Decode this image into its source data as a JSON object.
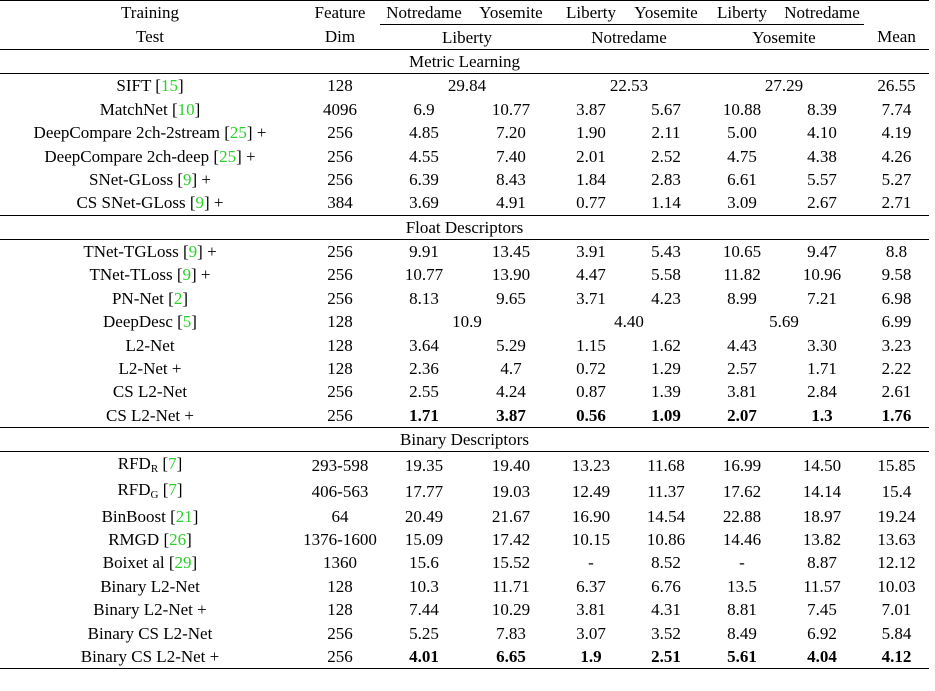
{
  "header": {
    "row1": {
      "method": "Training",
      "feat": "Feature",
      "train": [
        "Notredame",
        "Yosemite",
        "Liberty",
        "Yosemite",
        "Liberty",
        "Notredame"
      ]
    },
    "row2": {
      "method": "Test",
      "feat": "Dim",
      "test": [
        "Liberty",
        "Notredame",
        "Yosemite"
      ],
      "mean": "Mean"
    }
  },
  "sections": [
    {
      "title": "Metric Learning",
      "rows": [
        {
          "name": "SIFT",
          "cite": "15",
          "plus": "",
          "dim": "128",
          "merged": [
            "29.84",
            "22.53",
            "27.29"
          ],
          "mean": "26.55"
        },
        {
          "name": "MatchNet",
          "cite": "10",
          "plus": "",
          "dim": "4096",
          "values": [
            "6.9",
            "10.77",
            "3.87",
            "5.67",
            "10.88",
            "8.39"
          ],
          "mean": "7.74"
        },
        {
          "name": "DeepCompare 2ch-2stream",
          "cite": "25",
          "plus": " +",
          "dim": "256",
          "values": [
            "4.85",
            "7.20",
            "1.90",
            "2.11",
            "5.00",
            "4.10"
          ],
          "mean": "4.19"
        },
        {
          "name": "DeepCompare 2ch-deep",
          "cite": "25",
          "plus": " +",
          "dim": "256",
          "values": [
            "4.55",
            "7.40",
            "2.01",
            "2.52",
            "4.75",
            "4.38"
          ],
          "mean": "4.26"
        },
        {
          "name": "SNet-GLoss",
          "cite": "9",
          "plus": " +",
          "dim": "256",
          "values": [
            "6.39",
            "8.43",
            "1.84",
            "2.83",
            "6.61",
            "5.57"
          ],
          "mean": "5.27"
        },
        {
          "name": "CS SNet-GLoss",
          "cite": "9",
          "plus": " +",
          "dim": "384",
          "values": [
            "3.69",
            "4.91",
            "0.77",
            "1.14",
            "3.09",
            "2.67"
          ],
          "mean": "2.71"
        }
      ]
    },
    {
      "title": "Float Descriptors",
      "rows": [
        {
          "name": "TNet-TGLoss",
          "cite": "9",
          "plus": " +",
          "dim": "256",
          "values": [
            "9.91",
            "13.45",
            "3.91",
            "5.43",
            "10.65",
            "9.47"
          ],
          "mean": "8.8"
        },
        {
          "name": "TNet-TLoss",
          "cite": "9",
          "plus": " +",
          "dim": "256",
          "values": [
            "10.77",
            "13.90",
            "4.47",
            "5.58",
            "11.82",
            "10.96"
          ],
          "mean": "9.58"
        },
        {
          "name": "PN-Net",
          "cite": "2",
          "plus": "",
          "dim": "256",
          "values": [
            "8.13",
            "9.65",
            "3.71",
            "4.23",
            "8.99",
            "7.21"
          ],
          "mean": "6.98"
        },
        {
          "name": "DeepDesc",
          "cite": "5",
          "plus": "",
          "dim": "128",
          "merged": [
            "10.9",
            "4.40",
            "5.69"
          ],
          "mean": "6.99"
        },
        {
          "name": "L2-Net",
          "cite": "",
          "plus": "",
          "dim": "128",
          "values": [
            "3.64",
            "5.29",
            "1.15",
            "1.62",
            "4.43",
            "3.30"
          ],
          "mean": "3.23"
        },
        {
          "name": "L2-Net +",
          "cite": "",
          "plus": "",
          "dim": "128",
          "values": [
            "2.36",
            "4.7",
            "0.72",
            "1.29",
            "2.57",
            "1.71"
          ],
          "mean": "2.22"
        },
        {
          "name": "CS L2-Net",
          "cite": "",
          "plus": "",
          "dim": "256",
          "values": [
            "2.55",
            "4.24",
            "0.87",
            "1.39",
            "3.81",
            "2.84"
          ],
          "mean": "2.61"
        },
        {
          "name": "CS L2-Net +",
          "cite": "",
          "plus": "",
          "dim": "256",
          "values": [
            "1.71",
            "3.87",
            "0.56",
            "1.09",
            "2.07",
            "1.3"
          ],
          "mean": "1.76",
          "bold": true
        }
      ]
    },
    {
      "title": "Binary Descriptors",
      "rows": [
        {
          "name": "RFD",
          "sub": "R",
          "cite": "7",
          "plus": "",
          "dim": "293-598",
          "values": [
            "19.35",
            "19.40",
            "13.23",
            "11.68",
            "16.99",
            "14.50"
          ],
          "mean": "15.85"
        },
        {
          "name": "RFD",
          "sub": "G",
          "cite": "7",
          "plus": "",
          "dim": "406-563",
          "values": [
            "17.77",
            "19.03",
            "12.49",
            "11.37",
            "17.62",
            "14.14"
          ],
          "mean": "15.4"
        },
        {
          "name": "BinBoost",
          "cite": "21",
          "plus": "",
          "dim": "64",
          "values": [
            "20.49",
            "21.67",
            "16.90",
            "14.54",
            "22.88",
            "18.97"
          ],
          "mean": "19.24"
        },
        {
          "name": "RMGD",
          "cite": "26",
          "plus": "",
          "dim": "1376-1600",
          "values": [
            "15.09",
            "17.42",
            "10.15",
            "10.86",
            "14.46",
            "13.82"
          ],
          "mean": "13.63"
        },
        {
          "name": "Boixet al",
          "cite": "29",
          "plus": "",
          "dim": "1360",
          "values": [
            "15.6",
            "15.52",
            "-",
            "8.52",
            "-",
            "8.87"
          ],
          "mean": "12.12"
        },
        {
          "name": "Binary L2-Net",
          "cite": "",
          "plus": "",
          "dim": "128",
          "values": [
            "10.3",
            "11.71",
            "6.37",
            "6.76",
            "13.5",
            "11.57"
          ],
          "mean": "10.03"
        },
        {
          "name": "Binary L2-Net +",
          "cite": "",
          "plus": "",
          "dim": "128",
          "values": [
            "7.44",
            "10.29",
            "3.81",
            "4.31",
            "8.81",
            "7.45"
          ],
          "mean": "7.01"
        },
        {
          "name": "Binary CS L2-Net",
          "cite": "",
          "plus": "",
          "dim": "256",
          "values": [
            "5.25",
            "7.83",
            "3.07",
            "3.52",
            "8.49",
            "6.92"
          ],
          "mean": "5.84"
        },
        {
          "name": "Binary CS L2-Net +",
          "cite": "",
          "plus": "",
          "dim": "256",
          "values": [
            "4.01",
            "6.65",
            "1.9",
            "2.51",
            "5.61",
            "4.04"
          ],
          "mean": "4.12",
          "bold": true
        }
      ]
    }
  ]
}
